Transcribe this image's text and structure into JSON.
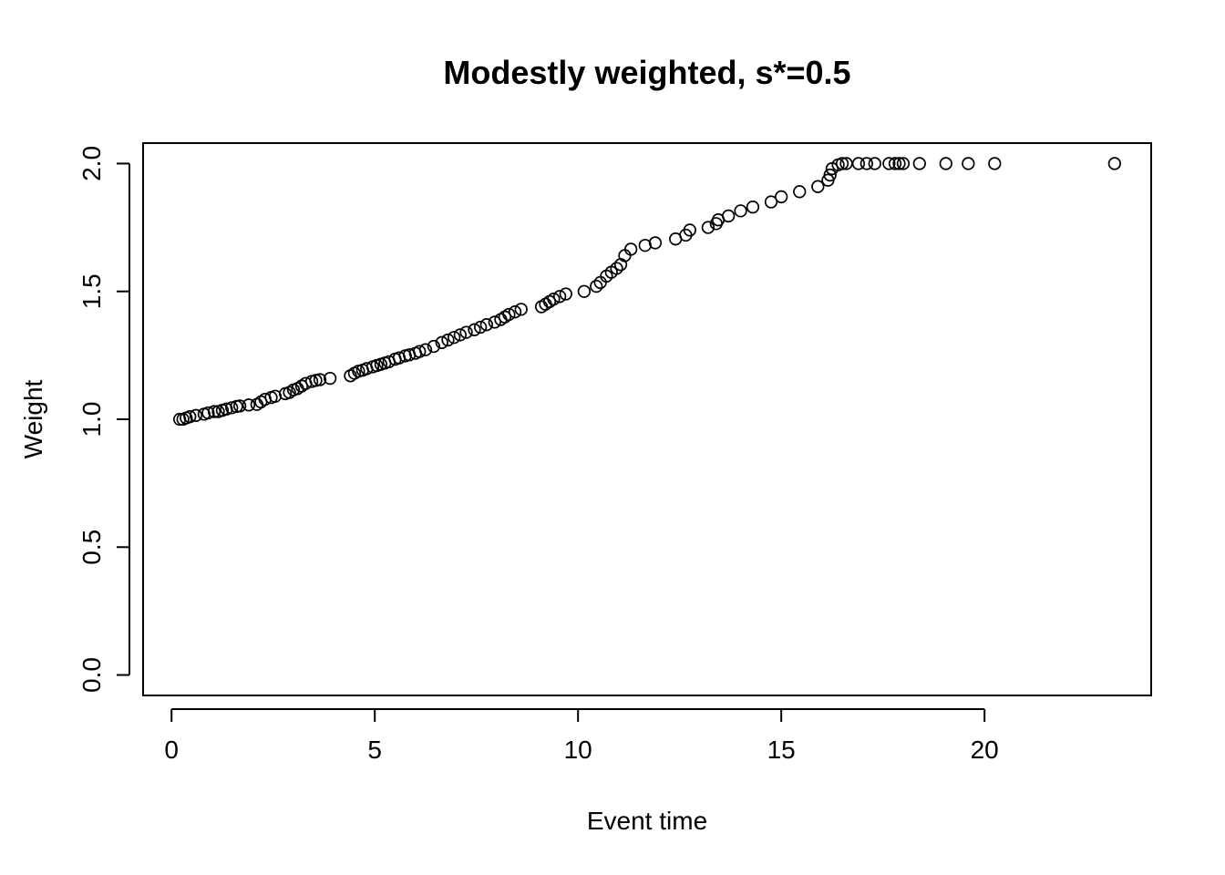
{
  "chart_data": {
    "type": "scatter",
    "title": "Modestly weighted, s*=0.5",
    "xlabel": "Event time",
    "ylabel": "Weight",
    "xlim": [
      -0.7,
      24.1
    ],
    "ylim": [
      -0.08,
      2.08
    ],
    "xticks": [
      0,
      5,
      10,
      15,
      20
    ],
    "yticks": [
      0.0,
      0.5,
      1.0,
      1.5,
      2.0
    ],
    "xtick_labels": [
      "0",
      "5",
      "10",
      "15",
      "20"
    ],
    "ytick_labels": [
      "0.0",
      "0.5",
      "1.0",
      "1.5",
      "2.0"
    ],
    "grid": false,
    "legend": "none",
    "marker": "open-circle",
    "colors": {
      "points": "#000000",
      "frame": "#000000",
      "background": "#ffffff"
    },
    "x": [
      0.2,
      0.28,
      0.36,
      0.45,
      0.6,
      0.8,
      0.9,
      1.05,
      1.15,
      1.25,
      1.35,
      1.48,
      1.6,
      1.68,
      1.9,
      2.1,
      2.2,
      2.3,
      2.45,
      2.55,
      2.8,
      2.9,
      3.0,
      3.1,
      3.2,
      3.3,
      3.45,
      3.55,
      3.65,
      3.9,
      4.4,
      4.5,
      4.6,
      4.7,
      4.8,
      4.95,
      5.05,
      5.15,
      5.25,
      5.35,
      5.5,
      5.6,
      5.75,
      5.85,
      6.0,
      6.1,
      6.25,
      6.45,
      6.65,
      6.8,
      6.95,
      7.1,
      7.25,
      7.45,
      7.6,
      7.75,
      7.95,
      8.1,
      8.2,
      8.3,
      8.45,
      8.6,
      9.1,
      9.2,
      9.3,
      9.4,
      9.55,
      9.7,
      10.15,
      10.45,
      10.55,
      10.7,
      10.82,
      10.95,
      11.05,
      11.15,
      11.3,
      11.65,
      11.9,
      12.4,
      12.65,
      12.75,
      13.2,
      13.4,
      13.45,
      13.7,
      14.0,
      14.3,
      14.75,
      15.0,
      15.45,
      15.9,
      16.15,
      16.2,
      16.25,
      16.4,
      16.5,
      16.6,
      16.9,
      17.1,
      17.3,
      17.65,
      17.8,
      17.9,
      18.0,
      18.4,
      19.05,
      19.6,
      20.25,
      23.2
    ],
    "y": [
      1.0,
      1.0,
      1.005,
      1.01,
      1.015,
      1.02,
      1.025,
      1.03,
      1.03,
      1.035,
      1.04,
      1.045,
      1.05,
      1.052,
      1.056,
      1.058,
      1.068,
      1.078,
      1.085,
      1.09,
      1.1,
      1.105,
      1.115,
      1.12,
      1.13,
      1.14,
      1.148,
      1.152,
      1.155,
      1.16,
      1.17,
      1.18,
      1.188,
      1.192,
      1.198,
      1.205,
      1.21,
      1.215,
      1.22,
      1.225,
      1.235,
      1.24,
      1.248,
      1.252,
      1.258,
      1.265,
      1.272,
      1.285,
      1.3,
      1.31,
      1.32,
      1.33,
      1.34,
      1.35,
      1.36,
      1.37,
      1.38,
      1.39,
      1.4,
      1.41,
      1.42,
      1.43,
      1.44,
      1.45,
      1.46,
      1.47,
      1.48,
      1.49,
      1.5,
      1.52,
      1.535,
      1.56,
      1.575,
      1.59,
      1.605,
      1.64,
      1.665,
      1.68,
      1.69,
      1.705,
      1.72,
      1.74,
      1.75,
      1.765,
      1.78,
      1.795,
      1.815,
      1.83,
      1.85,
      1.87,
      1.89,
      1.91,
      1.935,
      1.955,
      1.98,
      1.995,
      2.0,
      2.0,
      2.0,
      2.0,
      2.0,
      2.0,
      2.0,
      2.0,
      2.0,
      2.0,
      2.0,
      2.0,
      2.0,
      2.0
    ]
  }
}
